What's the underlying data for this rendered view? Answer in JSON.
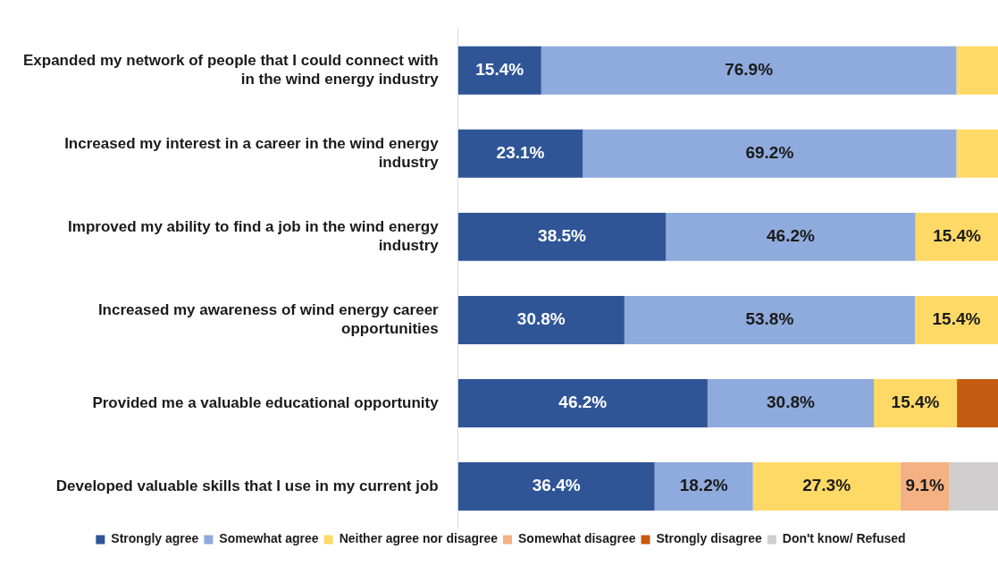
{
  "chart_data": {
    "type": "bar",
    "orientation": "horizontal",
    "stacked": true,
    "legend": "bottom",
    "grid": false,
    "tick_labels": "y",
    "xlim": [
      0,
      100
    ],
    "categories": [
      "Expanded my network of people that I could connect with in the wind energy industry",
      "Increased my interest in a career in the wind energy industry",
      "Improved my ability to find a job in the wind energy industry",
      "Increased my awareness of wind energy career opportunities",
      "Provided me a valuable educational opportunity",
      "Developed valuable skills that I use in my current job"
    ],
    "series": [
      {
        "name": "Strongly agree",
        "color": "#2f5597",
        "values": [
          15.4,
          23.1,
          38.5,
          30.8,
          46.2,
          36.4
        ],
        "value_labels": [
          "15.4%",
          "23.1%",
          "38.5%",
          "30.8%",
          "46.2%",
          "36.4%"
        ]
      },
      {
        "name": "Somewhat agree",
        "color": "#8faadc",
        "values": [
          76.9,
          69.2,
          46.2,
          53.8,
          30.8,
          18.2
        ],
        "value_labels": [
          "76.9%",
          "69.2%",
          "46.2%",
          "53.8%",
          "30.8%",
          "18.2%"
        ]
      },
      {
        "name": "Neither agree nor disagree",
        "color": "#ffd966",
        "values": [
          7.7,
          7.7,
          15.4,
          15.4,
          15.4,
          27.3
        ],
        "value_labels": [
          null,
          null,
          "15.4%",
          "15.4%",
          "15.4%",
          "27.3%"
        ]
      },
      {
        "name": "Somewhat disagree",
        "color": "#f4b183",
        "values": [
          0,
          0,
          0,
          0,
          0,
          9.1
        ],
        "value_labels": [
          null,
          null,
          null,
          null,
          null,
          "9.1%"
        ]
      },
      {
        "name": "Strongly disagree",
        "color": "#c55a11",
        "values": [
          0,
          0,
          0,
          0,
          7.7,
          0
        ],
        "value_labels": [
          null,
          null,
          null,
          null,
          null,
          null
        ]
      },
      {
        "name": "Don't know/ Refused",
        "color": "#d0cece",
        "values": [
          0,
          0,
          0,
          0,
          0,
          9.0
        ],
        "value_labels": [
          null,
          null,
          null,
          null,
          null,
          null
        ]
      }
    ]
  }
}
